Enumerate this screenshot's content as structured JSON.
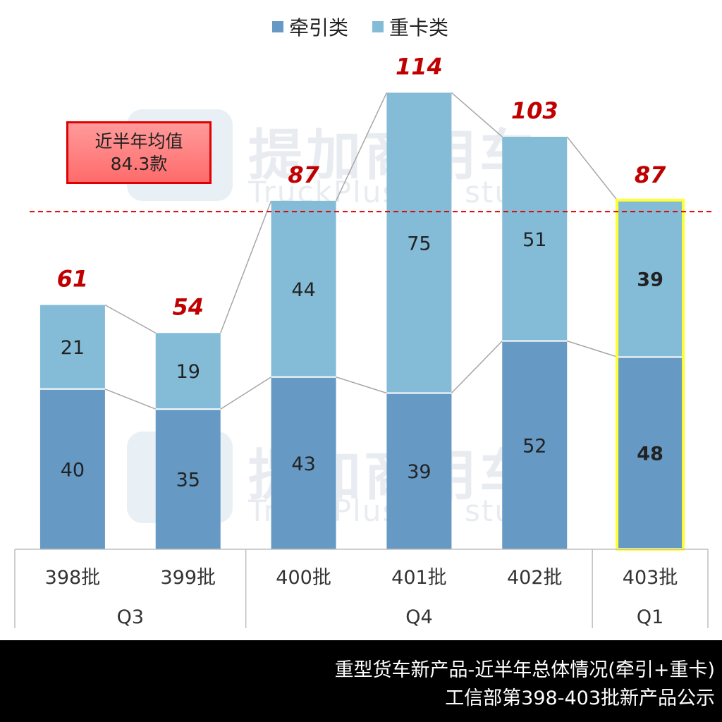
{
  "chart_data": {
    "type": "bar",
    "stacked": true,
    "categories": [
      "398批",
      "399批",
      "400批",
      "401批",
      "402批",
      "403批"
    ],
    "groups": [
      {
        "label": "Q3",
        "start": 0,
        "end": 1
      },
      {
        "label": "Q4",
        "start": 2,
        "end": 4
      },
      {
        "label": "Q1",
        "start": 5,
        "end": 5
      }
    ],
    "series": [
      {
        "name": "牵引类",
        "color": "#6699c4",
        "values": [
          40,
          35,
          43,
          39,
          52,
          48
        ]
      },
      {
        "name": "重卡类",
        "color": "#84bcd8",
        "values": [
          21,
          19,
          44,
          75,
          51,
          39
        ]
      }
    ],
    "totals": [
      61,
      54,
      87,
      114,
      103,
      87
    ],
    "highlight_index": 5,
    "highlight_color": "#ffff33",
    "average": {
      "value": 84.3,
      "line_color": "#e00000",
      "label_line1": "近半年均值",
      "label_line2": "84.3款"
    },
    "ylim": [
      0,
      120
    ],
    "legend_position": "top-center"
  },
  "watermark": {
    "text_cn": "提加商用车",
    "text_en": "TruckPlus  CV studio"
  },
  "footer": {
    "line1": "重型货车新产品-近半年总体情况(牵引+重卡)",
    "line2": "工信部第398-403批新产品公示"
  }
}
